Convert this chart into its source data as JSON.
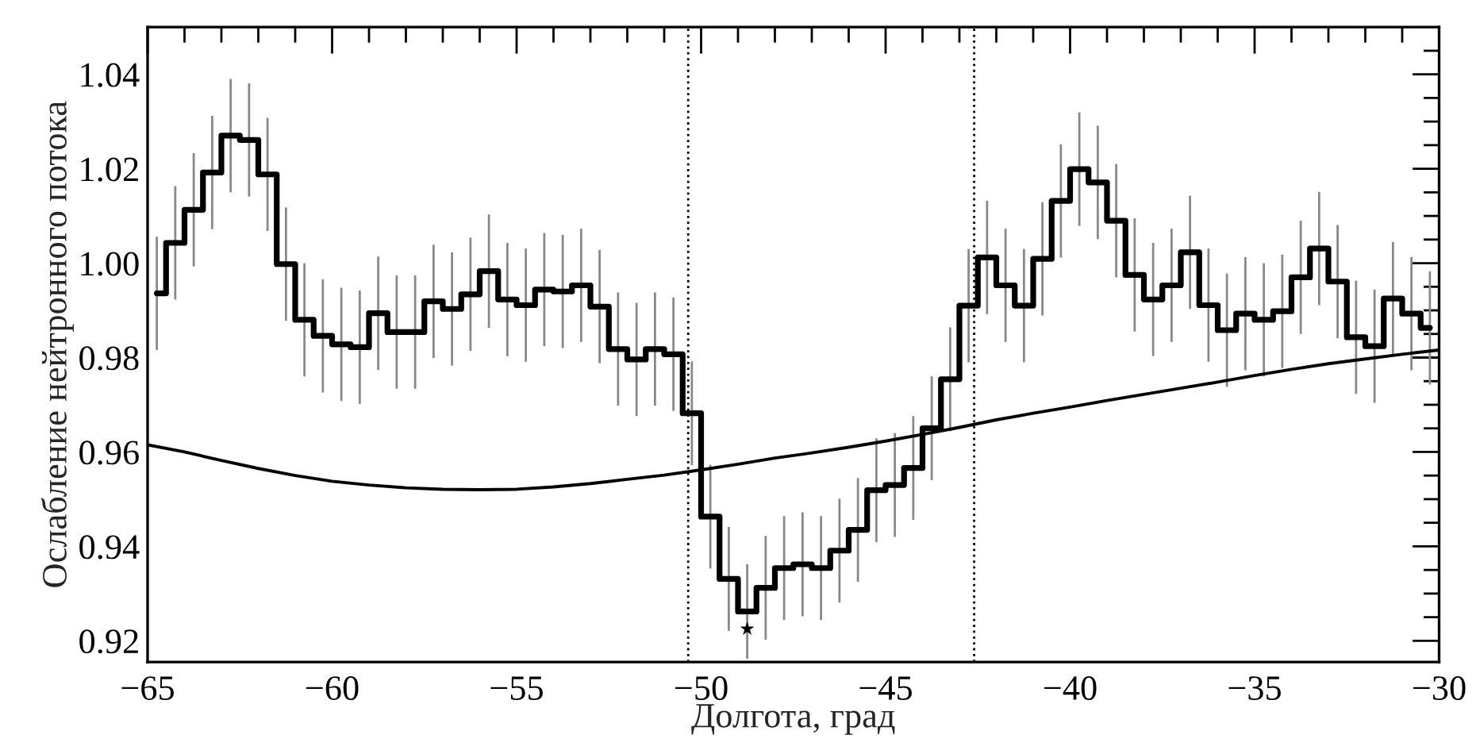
{
  "chart_data": {
    "type": "step",
    "xlabel": "Долгота, град",
    "ylabel": "Ослабление нейтронного потока",
    "series": [
      {
        "color": "#000000",
        "x": [
          -64.75,
          -64.25,
          -63.75,
          -63.25,
          -62.75,
          -62.25,
          -61.75,
          -61.25,
          -60.75,
          -60.25,
          -59.75,
          -59.25,
          -58.75,
          -58.25,
          -57.75,
          -57.25,
          -56.75,
          -56.25,
          -55.75,
          -55.25,
          -54.75,
          -54.25,
          -53.75,
          -53.25,
          -52.75,
          -52.25,
          -51.75,
          -51.25,
          -50.75,
          -50.25,
          -49.75,
          -49.25,
          -48.75,
          -48.25,
          -47.75,
          -47.25,
          -46.75,
          -46.25,
          -45.75,
          -45.25,
          -44.75,
          -44.25,
          -43.75,
          -43.25,
          -42.75,
          -42.25,
          -41.75,
          -41.25,
          -40.75,
          -40.25,
          -39.75,
          -39.25,
          -38.75,
          -38.25,
          -37.75,
          -37.25,
          -36.75,
          -36.25,
          -35.75,
          -35.25,
          -34.75,
          -34.25,
          -33.75,
          -33.25,
          -32.75,
          -32.25,
          -31.75,
          -31.25,
          -30.75,
          -30.25
        ],
        "values": [
          0.9936,
          1.0043,
          1.0113,
          1.0192,
          1.027,
          1.0261,
          1.0188,
          0.9998,
          0.988,
          0.9846,
          0.9828,
          0.9822,
          0.9894,
          0.9854,
          0.9854,
          0.9919,
          0.9903,
          0.9934,
          0.9983,
          0.9923,
          0.9911,
          0.9944,
          0.994,
          0.9953,
          0.9908,
          0.9818,
          0.9796,
          0.9818,
          0.9807,
          0.9682,
          0.9463,
          0.9331,
          0.9262,
          0.9312,
          0.9354,
          0.9362,
          0.9354,
          0.9391,
          0.9435,
          0.9519,
          0.953,
          0.9566,
          0.965,
          0.9754,
          0.991,
          1.0012,
          0.9953,
          0.991,
          1.0009,
          1.0132,
          1.0199,
          1.0171,
          1.009,
          0.9975,
          0.9923,
          0.9953,
          1.0023,
          0.9911,
          0.9858,
          0.9893,
          0.988,
          0.9898,
          0.997,
          1.0031,
          0.9961,
          0.9843,
          0.9824,
          0.9925,
          0.9893,
          0.9863
        ],
        "errors": [
          0.012,
          0.012,
          0.012,
          0.012,
          0.012,
          0.012,
          0.012,
          0.012,
          0.012,
          0.012,
          0.012,
          0.012,
          0.012,
          0.012,
          0.012,
          0.012,
          0.012,
          0.012,
          0.012,
          0.012,
          0.012,
          0.012,
          0.012,
          0.012,
          0.012,
          0.012,
          0.012,
          0.012,
          0.012,
          0.011,
          0.011,
          0.011,
          0.01,
          0.011,
          0.011,
          0.011,
          0.011,
          0.011,
          0.011,
          0.011,
          0.011,
          0.011,
          0.011,
          0.011,
          0.012,
          0.012,
          0.012,
          0.012,
          0.012,
          0.012,
          0.012,
          0.012,
          0.012,
          0.012,
          0.012,
          0.012,
          0.012,
          0.012,
          0.012,
          0.012,
          0.012,
          0.012,
          0.012,
          0.012,
          0.012,
          0.012,
          0.012,
          0.012,
          0.012,
          0.012
        ]
      },
      {
        "type": "line",
        "color": "#000000",
        "x": [
          -65,
          -64,
          -63,
          -62,
          -61,
          -60,
          -59,
          -58,
          -57,
          -56,
          -55,
          -54,
          -53,
          -52,
          -51,
          -50,
          -49,
          -48,
          -47,
          -46,
          -45,
          -44,
          -43,
          -42,
          -41,
          -40,
          -39,
          -38,
          -37,
          -36,
          -35,
          -34,
          -33,
          -32,
          -31,
          -30
        ],
        "values": [
          0.9615,
          0.96,
          0.9582,
          0.9565,
          0.955,
          0.9538,
          0.953,
          0.9524,
          0.9521,
          0.952,
          0.9521,
          0.9526,
          0.9533,
          0.9542,
          0.9551,
          0.9562,
          0.9574,
          0.9587,
          0.9598,
          0.961,
          0.9623,
          0.9637,
          0.9652,
          0.9668,
          0.9682,
          0.9695,
          0.9709,
          0.9722,
          0.9735,
          0.9748,
          0.9762,
          0.9775,
          0.9787,
          0.9797,
          0.9807,
          0.9816
        ]
      },
      {
        "type": "scatter",
        "color": "#000000",
        "marker": "star",
        "x": [
          -48.75
        ],
        "values": [
          0.9225
        ]
      }
    ],
    "ref_lines": [
      {
        "axis": "x",
        "value": -50.35,
        "color": "#000000",
        "line_style": "dotted"
      },
      {
        "axis": "x",
        "value": -42.6,
        "color": "#000000",
        "line_style": "dotted"
      }
    ],
    "xlim": [
      -65,
      -30
    ],
    "ylim": [
      0.9155,
      1.05
    ],
    "xticks": [
      {
        "value": -65,
        "label": "−65"
      },
      {
        "value": -64,
        "label": null
      },
      {
        "value": -63,
        "label": null
      },
      {
        "value": -62,
        "label": null
      },
      {
        "value": -61,
        "label": null
      },
      {
        "value": -60,
        "label": "−60"
      },
      {
        "value": -59,
        "label": null
      },
      {
        "value": -58,
        "label": null
      },
      {
        "value": -57,
        "label": null
      },
      {
        "value": -56,
        "label": null
      },
      {
        "value": -55,
        "label": "−55"
      },
      {
        "value": -54,
        "label": null
      },
      {
        "value": -53,
        "label": null
      },
      {
        "value": -52,
        "label": null
      },
      {
        "value": -51,
        "label": null
      },
      {
        "value": -50,
        "label": "−50"
      },
      {
        "value": -49,
        "label": null
      },
      {
        "value": -48,
        "label": null
      },
      {
        "value": -47,
        "label": null
      },
      {
        "value": -46,
        "label": null
      },
      {
        "value": -45,
        "label": "−45"
      },
      {
        "value": -44,
        "label": null
      },
      {
        "value": -43,
        "label": null
      },
      {
        "value": -42,
        "label": null
      },
      {
        "value": -41,
        "label": null
      },
      {
        "value": -40,
        "label": "−40"
      },
      {
        "value": -39,
        "label": null
      },
      {
        "value": -38,
        "label": null
      },
      {
        "value": -37,
        "label": null
      },
      {
        "value": -36,
        "label": null
      },
      {
        "value": -35,
        "label": "−35"
      },
      {
        "value": -34,
        "label": null
      },
      {
        "value": -33,
        "label": null
      },
      {
        "value": -32,
        "label": null
      },
      {
        "value": -31,
        "label": null
      },
      {
        "value": -30,
        "label": "−30"
      }
    ],
    "yticks": [
      {
        "value": 0.92,
        "label": "0.92"
      },
      {
        "value": 0.925,
        "label": null
      },
      {
        "value": 0.93,
        "label": null
      },
      {
        "value": 0.935,
        "label": null
      },
      {
        "value": 0.94,
        "label": "0.94"
      },
      {
        "value": 0.945,
        "label": null
      },
      {
        "value": 0.95,
        "label": null
      },
      {
        "value": 0.955,
        "label": null
      },
      {
        "value": 0.96,
        "label": "0.96"
      },
      {
        "value": 0.965,
        "label": null
      },
      {
        "value": 0.97,
        "label": null
      },
      {
        "value": 0.975,
        "label": null
      },
      {
        "value": 0.98,
        "label": "0.98"
      },
      {
        "value": 0.985,
        "label": null
      },
      {
        "value": 0.99,
        "label": null
      },
      {
        "value": 0.995,
        "label": null
      },
      {
        "value": 1.0,
        "label": "1.00"
      },
      {
        "value": 1.005,
        "label": null
      },
      {
        "value": 1.01,
        "label": null
      },
      {
        "value": 1.015,
        "label": null
      },
      {
        "value": 1.02,
        "label": "1.02"
      },
      {
        "value": 1.025,
        "label": null
      },
      {
        "value": 1.03,
        "label": null
      },
      {
        "value": 1.035,
        "label": null
      },
      {
        "value": 1.04,
        "label": "1.04"
      },
      {
        "value": 1.045,
        "label": null
      }
    ],
    "grid": false,
    "legend": false
  }
}
